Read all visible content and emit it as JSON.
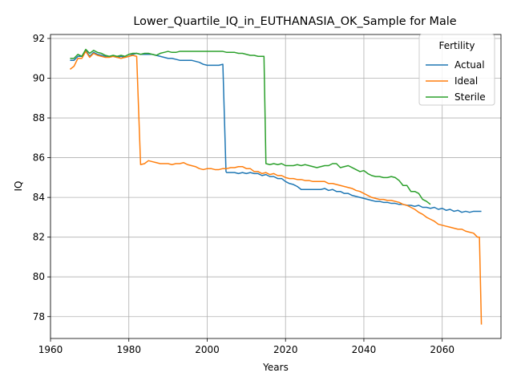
{
  "chart_data": {
    "type": "line",
    "title": "Lower_Quartile_IQ_in_EUTHANASIA_OK_Sample for Male",
    "xlabel": "Years",
    "ylabel": "IQ",
    "xlim": [
      1960,
      2075
    ],
    "ylim": [
      76.9,
      92.2
    ],
    "xticks": [
      1960,
      1980,
      2000,
      2020,
      2040,
      2060
    ],
    "yticks": [
      78,
      80,
      82,
      84,
      86,
      88,
      90,
      92
    ],
    "grid": true,
    "legend": {
      "title": "Fertility",
      "position": "top-right",
      "entries": [
        "Actual",
        "Ideal",
        "Sterile"
      ]
    },
    "series": [
      {
        "name": "Actual",
        "color": "#1f77b4",
        "points": [
          [
            1965,
            90.9
          ],
          [
            1966,
            90.9
          ],
          [
            1967,
            91.1
          ],
          [
            1968,
            91.1
          ],
          [
            1969,
            91.4
          ],
          [
            1970,
            91.1
          ],
          [
            1971,
            91.3
          ],
          [
            1972,
            91.2
          ],
          [
            1973,
            91.15
          ],
          [
            1974,
            91.1
          ],
          [
            1975,
            91.1
          ],
          [
            1976,
            91.1
          ],
          [
            1977,
            91.05
          ],
          [
            1978,
            91.1
          ],
          [
            1979,
            91.05
          ],
          [
            1980,
            91.1
          ],
          [
            1981,
            91.2
          ],
          [
            1982,
            91.25
          ],
          [
            1983,
            91.2
          ],
          [
            1984,
            91.2
          ],
          [
            1985,
            91.2
          ],
          [
            1986,
            91.2
          ],
          [
            1987,
            91.15
          ],
          [
            1988,
            91.1
          ],
          [
            1989,
            91.05
          ],
          [
            1990,
            91.0
          ],
          [
            1991,
            91.0
          ],
          [
            1992,
            90.95
          ],
          [
            1993,
            90.9
          ],
          [
            1994,
            90.9
          ],
          [
            1995,
            90.9
          ],
          [
            1996,
            90.9
          ],
          [
            1997,
            90.85
          ],
          [
            1998,
            90.8
          ],
          [
            1999,
            90.7
          ],
          [
            2000,
            90.65
          ],
          [
            2001,
            90.65
          ],
          [
            2002,
            90.65
          ],
          [
            2003,
            90.65
          ],
          [
            2004,
            90.7
          ],
          [
            2004.8,
            85.3
          ],
          [
            2005,
            85.25
          ],
          [
            2006,
            85.25
          ],
          [
            2007,
            85.25
          ],
          [
            2008,
            85.2
          ],
          [
            2009,
            85.25
          ],
          [
            2010,
            85.2
          ],
          [
            2011,
            85.25
          ],
          [
            2012,
            85.2
          ],
          [
            2013,
            85.2
          ],
          [
            2014,
            85.1
          ],
          [
            2015,
            85.15
          ],
          [
            2016,
            85.05
          ],
          [
            2017,
            85.05
          ],
          [
            2018,
            84.95
          ],
          [
            2019,
            84.95
          ],
          [
            2020,
            84.8
          ],
          [
            2021,
            84.7
          ],
          [
            2022,
            84.65
          ],
          [
            2023,
            84.55
          ],
          [
            2024,
            84.4
          ],
          [
            2025,
            84.4
          ],
          [
            2026,
            84.4
          ],
          [
            2027,
            84.4
          ],
          [
            2028,
            84.4
          ],
          [
            2029,
            84.4
          ],
          [
            2030,
            84.45
          ],
          [
            2031,
            84.35
          ],
          [
            2032,
            84.4
          ],
          [
            2033,
            84.3
          ],
          [
            2034,
            84.3
          ],
          [
            2035,
            84.2
          ],
          [
            2036,
            84.2
          ],
          [
            2037,
            84.1
          ],
          [
            2038,
            84.05
          ],
          [
            2039,
            84.0
          ],
          [
            2040,
            83.95
          ],
          [
            2041,
            83.9
          ],
          [
            2042,
            83.85
          ],
          [
            2043,
            83.8
          ],
          [
            2044,
            83.8
          ],
          [
            2045,
            83.75
          ],
          [
            2046,
            83.75
          ],
          [
            2047,
            83.7
          ],
          [
            2048,
            83.7
          ],
          [
            2049,
            83.65
          ],
          [
            2050,
            83.65
          ],
          [
            2051,
            83.6
          ],
          [
            2052,
            83.6
          ],
          [
            2053,
            83.55
          ],
          [
            2054,
            83.6
          ],
          [
            2055,
            83.5
          ],
          [
            2056,
            83.5
          ],
          [
            2057,
            83.45
          ],
          [
            2058,
            83.5
          ],
          [
            2059,
            83.4
          ],
          [
            2060,
            83.45
          ],
          [
            2061,
            83.35
          ],
          [
            2062,
            83.4
          ],
          [
            2063,
            83.3
          ],
          [
            2064,
            83.35
          ],
          [
            2065,
            83.25
          ],
          [
            2066,
            83.3
          ],
          [
            2067,
            83.25
          ],
          [
            2068,
            83.3
          ],
          [
            2069,
            83.3
          ],
          [
            2070,
            83.3
          ]
        ]
      },
      {
        "name": "Ideal",
        "color": "#ff7f0e",
        "points": [
          [
            1965,
            90.45
          ],
          [
            1966,
            90.6
          ],
          [
            1967,
            91.0
          ],
          [
            1968,
            91.0
          ],
          [
            1969,
            91.35
          ],
          [
            1970,
            91.05
          ],
          [
            1971,
            91.25
          ],
          [
            1972,
            91.15
          ],
          [
            1973,
            91.1
          ],
          [
            1974,
            91.05
          ],
          [
            1975,
            91.05
          ],
          [
            1976,
            91.1
          ],
          [
            1977,
            91.05
          ],
          [
            1978,
            91.0
          ],
          [
            1979,
            91.05
          ],
          [
            1980,
            91.1
          ],
          [
            1981,
            91.15
          ],
          [
            1982,
            91.1
          ],
          [
            1983,
            85.65
          ],
          [
            1984,
            85.7
          ],
          [
            1985,
            85.85
          ],
          [
            1986,
            85.8
          ],
          [
            1987,
            85.75
          ],
          [
            1988,
            85.7
          ],
          [
            1989,
            85.7
          ],
          [
            1990,
            85.7
          ],
          [
            1991,
            85.65
          ],
          [
            1992,
            85.7
          ],
          [
            1993,
            85.7
          ],
          [
            1994,
            85.75
          ],
          [
            1995,
            85.65
          ],
          [
            1996,
            85.6
          ],
          [
            1997,
            85.55
          ],
          [
            1998,
            85.45
          ],
          [
            1999,
            85.4
          ],
          [
            2000,
            85.45
          ],
          [
            2001,
            85.45
          ],
          [
            2002,
            85.4
          ],
          [
            2003,
            85.4
          ],
          [
            2004,
            85.45
          ],
          [
            2005,
            85.45
          ],
          [
            2006,
            85.5
          ],
          [
            2007,
            85.5
          ],
          [
            2008,
            85.55
          ],
          [
            2009,
            85.55
          ],
          [
            2010,
            85.45
          ],
          [
            2011,
            85.45
          ],
          [
            2012,
            85.3
          ],
          [
            2013,
            85.3
          ],
          [
            2014,
            85.2
          ],
          [
            2015,
            85.25
          ],
          [
            2016,
            85.15
          ],
          [
            2017,
            85.2
          ],
          [
            2018,
            85.1
          ],
          [
            2019,
            85.1
          ],
          [
            2020,
            85.0
          ],
          [
            2021,
            84.95
          ],
          [
            2022,
            84.95
          ],
          [
            2023,
            84.9
          ],
          [
            2024,
            84.9
          ],
          [
            2025,
            84.85
          ],
          [
            2026,
            84.85
          ],
          [
            2027,
            84.8
          ],
          [
            2028,
            84.8
          ],
          [
            2029,
            84.8
          ],
          [
            2030,
            84.8
          ],
          [
            2031,
            84.7
          ],
          [
            2032,
            84.7
          ],
          [
            2033,
            84.65
          ],
          [
            2034,
            84.6
          ],
          [
            2035,
            84.55
          ],
          [
            2036,
            84.5
          ],
          [
            2037,
            84.45
          ],
          [
            2038,
            84.35
          ],
          [
            2039,
            84.3
          ],
          [
            2040,
            84.2
          ],
          [
            2041,
            84.1
          ],
          [
            2042,
            84.0
          ],
          [
            2043,
            83.95
          ],
          [
            2044,
            83.9
          ],
          [
            2045,
            83.9
          ],
          [
            2046,
            83.85
          ],
          [
            2047,
            83.85
          ],
          [
            2048,
            83.8
          ],
          [
            2049,
            83.75
          ],
          [
            2050,
            83.65
          ],
          [
            2051,
            83.6
          ],
          [
            2052,
            83.5
          ],
          [
            2053,
            83.4
          ],
          [
            2054,
            83.25
          ],
          [
            2055,
            83.15
          ],
          [
            2056,
            83.0
          ],
          [
            2057,
            82.9
          ],
          [
            2058,
            82.8
          ],
          [
            2059,
            82.65
          ],
          [
            2060,
            82.6
          ],
          [
            2061,
            82.55
          ],
          [
            2062,
            82.5
          ],
          [
            2063,
            82.45
          ],
          [
            2064,
            82.4
          ],
          [
            2065,
            82.4
          ],
          [
            2066,
            82.3
          ],
          [
            2067,
            82.25
          ],
          [
            2068,
            82.2
          ],
          [
            2069,
            82.0
          ],
          [
            2069.5,
            82.0
          ],
          [
            2070,
            77.6
          ]
        ]
      },
      {
        "name": "Sterile",
        "color": "#2ca02c",
        "points": [
          [
            1965,
            91.0
          ],
          [
            1966,
            91.0
          ],
          [
            1967,
            91.2
          ],
          [
            1968,
            91.1
          ],
          [
            1969,
            91.45
          ],
          [
            1970,
            91.25
          ],
          [
            1971,
            91.4
          ],
          [
            1972,
            91.3
          ],
          [
            1973,
            91.25
          ],
          [
            1974,
            91.15
          ],
          [
            1975,
            91.1
          ],
          [
            1976,
            91.15
          ],
          [
            1977,
            91.1
          ],
          [
            1978,
            91.15
          ],
          [
            1979,
            91.1
          ],
          [
            1980,
            91.2
          ],
          [
            1981,
            91.25
          ],
          [
            1982,
            91.25
          ],
          [
            1983,
            91.2
          ],
          [
            1984,
            91.25
          ],
          [
            1985,
            91.25
          ],
          [
            1986,
            91.2
          ],
          [
            1987,
            91.15
          ],
          [
            1988,
            91.25
          ],
          [
            1989,
            91.3
          ],
          [
            1990,
            91.35
          ],
          [
            1991,
            91.3
          ],
          [
            1992,
            91.3
          ],
          [
            1993,
            91.35
          ],
          [
            1994,
            91.35
          ],
          [
            1995,
            91.35
          ],
          [
            1996,
            91.35
          ],
          [
            1997,
            91.35
          ],
          [
            1998,
            91.35
          ],
          [
            1999,
            91.35
          ],
          [
            2000,
            91.35
          ],
          [
            2001,
            91.35
          ],
          [
            2002,
            91.35
          ],
          [
            2003,
            91.35
          ],
          [
            2004,
            91.35
          ],
          [
            2005,
            91.3
          ],
          [
            2006,
            91.3
          ],
          [
            2007,
            91.3
          ],
          [
            2008,
            91.25
          ],
          [
            2009,
            91.25
          ],
          [
            2010,
            91.2
          ],
          [
            2011,
            91.15
          ],
          [
            2012,
            91.15
          ],
          [
            2013,
            91.1
          ],
          [
            2014,
            91.1
          ],
          [
            2014.5,
            91.1
          ],
          [
            2015,
            85.7
          ],
          [
            2016,
            85.65
          ],
          [
            2017,
            85.7
          ],
          [
            2018,
            85.65
          ],
          [
            2019,
            85.7
          ],
          [
            2020,
            85.6
          ],
          [
            2021,
            85.6
          ],
          [
            2022,
            85.6
          ],
          [
            2023,
            85.65
          ],
          [
            2024,
            85.6
          ],
          [
            2025,
            85.65
          ],
          [
            2026,
            85.6
          ],
          [
            2027,
            85.55
          ],
          [
            2028,
            85.5
          ],
          [
            2029,
            85.55
          ],
          [
            2030,
            85.6
          ],
          [
            2031,
            85.6
          ],
          [
            2032,
            85.7
          ],
          [
            2033,
            85.7
          ],
          [
            2034,
            85.5
          ],
          [
            2035,
            85.55
          ],
          [
            2036,
            85.6
          ],
          [
            2037,
            85.5
          ],
          [
            2038,
            85.4
          ],
          [
            2039,
            85.3
          ],
          [
            2040,
            85.35
          ],
          [
            2041,
            85.2
          ],
          [
            2042,
            85.1
          ],
          [
            2043,
            85.05
          ],
          [
            2044,
            85.05
          ],
          [
            2045,
            85.0
          ],
          [
            2046,
            85.0
          ],
          [
            2047,
            85.05
          ],
          [
            2048,
            85.0
          ],
          [
            2049,
            84.85
          ],
          [
            2050,
            84.6
          ],
          [
            2051,
            84.6
          ],
          [
            2052,
            84.3
          ],
          [
            2053,
            84.3
          ],
          [
            2054,
            84.2
          ],
          [
            2055,
            83.9
          ],
          [
            2056,
            83.8
          ],
          [
            2057,
            83.65
          ]
        ]
      }
    ]
  }
}
